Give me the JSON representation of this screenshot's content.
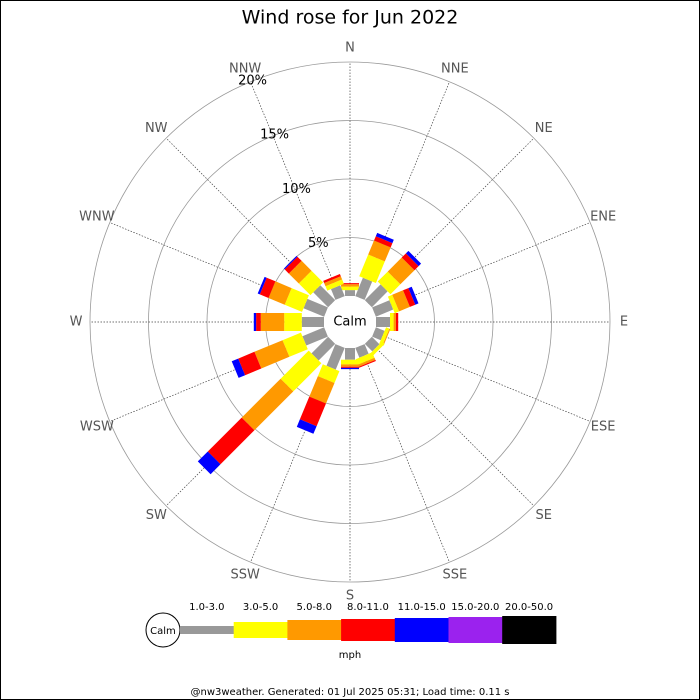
{
  "chart_data": {
    "type": "rose",
    "title": "Wind rose for Jun 2022",
    "categories": [
      "N",
      "NNE",
      "NE",
      "ENE",
      "E",
      "ESE",
      "SE",
      "SSE",
      "S",
      "SSW",
      "SW",
      "WSW",
      "W",
      "WNW",
      "NW",
      "NNW"
    ],
    "series": [
      {
        "name": "1.0-3.0",
        "color": "#999999",
        "values": [
          0.5,
          1.7,
          1.9,
          1.6,
          1.2,
          0.8,
          0.9,
          0.9,
          1.0,
          2.0,
          2.0,
          2.0,
          1.9,
          1.9,
          1.8,
          1.0
        ]
      },
      {
        "name": "3.0-5.0",
        "color": "#ffff00",
        "values": [
          0.3,
          2.0,
          1.2,
          0.4,
          0.3,
          0.3,
          0.3,
          0.5,
          0.4,
          1.1,
          3.4,
          1.7,
          1.5,
          1.6,
          1.4,
          0.4
        ]
      },
      {
        "name": "5.0-8.0",
        "color": "#ff9900",
        "values": [
          0.2,
          1.3,
          1.7,
          1.0,
          0.2,
          0.1,
          0.0,
          0.2,
          0.2,
          1.9,
          4.7,
          2.6,
          2.0,
          1.5,
          1.2,
          0.3
        ]
      },
      {
        "name": "8.0-11.0",
        "color": "#ff0000",
        "values": [
          0.1,
          0.4,
          0.5,
          0.5,
          0.2,
          0.0,
          0.0,
          0.1,
          0.1,
          2.1,
          4.1,
          1.5,
          0.4,
          0.8,
          0.5,
          0.2
        ]
      },
      {
        "name": "11.0-15.0",
        "color": "#0000ff",
        "values": [
          0.0,
          0.3,
          0.3,
          0.3,
          0.0,
          0.0,
          0.0,
          0.0,
          0.1,
          0.7,
          1.2,
          0.6,
          0.2,
          0.2,
          0.1,
          0.0
        ]
      },
      {
        "name": "15.0-20.0",
        "color": "#9b22ee",
        "values": [
          0,
          0,
          0,
          0,
          0,
          0,
          0,
          0,
          0,
          0,
          0,
          0,
          0,
          0,
          0,
          0
        ]
      },
      {
        "name": "20.0-50.0",
        "color": "#000000",
        "values": [
          0,
          0,
          0,
          0,
          0,
          0,
          0,
          0,
          0,
          0,
          0,
          0,
          0,
          0,
          0,
          0
        ]
      }
    ],
    "rlim": [
      0,
      20
    ],
    "rticks": [
      {
        "value": 5,
        "label": "5%"
      },
      {
        "value": 10,
        "label": "10%"
      },
      {
        "value": 15,
        "label": "15%"
      },
      {
        "value": 20,
        "label": "20%"
      }
    ],
    "grid": true,
    "center_label": "Calm",
    "legend_calm_label": "Calm",
    "unit_label": "mph",
    "footer": "@nw3weather. Generated: 01 Jul 2025 05:31; Load time: 0.11 s"
  }
}
